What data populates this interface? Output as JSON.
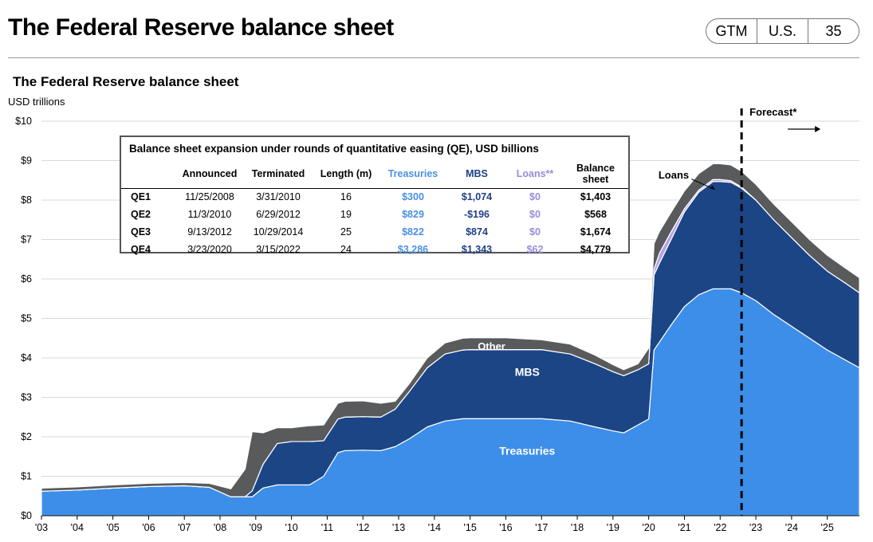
{
  "header": {
    "title": "The Federal Reserve balance sheet",
    "badge": [
      "GTM",
      "U.S.",
      "35"
    ]
  },
  "chart_data": {
    "type": "area",
    "title": "The Federal Reserve balance sheet",
    "ylabel": "USD trillions",
    "ylim": [
      0,
      10
    ],
    "yticks": [
      "$0",
      "$1",
      "$2",
      "$3",
      "$4",
      "$5",
      "$6",
      "$7",
      "$8",
      "$9",
      "$10"
    ],
    "xticks": [
      "'03",
      "'04",
      "'05",
      "'06",
      "'07",
      "'08",
      "'09",
      "'10",
      "'11",
      "'12",
      "'13",
      "'14",
      "'15",
      "'16",
      "'17",
      "'18",
      "'19",
      "'20",
      "'21",
      "'22",
      "'23",
      "'24",
      "'25"
    ],
    "x": [
      2003.0,
      2004.0,
      2005.0,
      2006.0,
      2007.0,
      2007.7,
      2008.3,
      2008.7,
      2008.9,
      2009.2,
      2009.6,
      2010.0,
      2010.5,
      2010.9,
      2011.3,
      2011.5,
      2012.0,
      2012.5,
      2012.9,
      2013.3,
      2013.8,
      2014.3,
      2014.8,
      2015.0,
      2016.0,
      2017.0,
      2017.8,
      2018.5,
      2019.0,
      2019.3,
      2019.7,
      2020.0,
      2020.15,
      2020.3,
      2020.6,
      2021.0,
      2021.4,
      2021.8,
      2022.0,
      2022.3,
      2022.6,
      2023.0,
      2023.5,
      2024.0,
      2024.5,
      2025.0,
      2025.5,
      2025.9
    ],
    "series": [
      {
        "name": "Treasuries",
        "values": [
          0.62,
          0.65,
          0.7,
          0.74,
          0.76,
          0.72,
          0.48,
          0.48,
          0.48,
          0.7,
          0.78,
          0.78,
          0.78,
          1.0,
          1.6,
          1.65,
          1.66,
          1.65,
          1.75,
          1.95,
          2.25,
          2.4,
          2.46,
          2.46,
          2.46,
          2.46,
          2.4,
          2.25,
          2.15,
          2.1,
          2.3,
          2.45,
          4.2,
          4.4,
          4.8,
          5.3,
          5.6,
          5.75,
          5.75,
          5.75,
          5.65,
          5.45,
          5.1,
          4.8,
          4.5,
          4.2,
          3.95,
          3.75
        ]
      },
      {
        "name": "MBS",
        "values": [
          0,
          0,
          0,
          0,
          0,
          0,
          0,
          0,
          0.15,
          0.6,
          1.05,
          1.1,
          1.1,
          0.9,
          0.85,
          0.85,
          0.85,
          0.85,
          0.95,
          1.2,
          1.5,
          1.7,
          1.74,
          1.75,
          1.75,
          1.75,
          1.7,
          1.6,
          1.5,
          1.45,
          1.4,
          1.4,
          1.9,
          2.0,
          2.15,
          2.4,
          2.6,
          2.72,
          2.72,
          2.7,
          2.65,
          2.55,
          2.4,
          2.25,
          2.1,
          2.0,
          1.95,
          1.9
        ]
      },
      {
        "name": "Loans",
        "values": [
          0,
          0,
          0,
          0,
          0,
          0,
          0,
          0,
          0,
          0,
          0,
          0,
          0,
          0,
          0,
          0,
          0,
          0,
          0,
          0,
          0,
          0,
          0,
          0,
          0,
          0,
          0,
          0,
          0,
          0,
          0,
          0,
          0.15,
          0.25,
          0.2,
          0.08,
          0.05,
          0.05,
          0.05,
          0.04,
          0.03,
          0,
          0,
          0,
          0,
          0,
          0,
          0
        ]
      },
      {
        "name": "Other",
        "values": [
          0.08,
          0.08,
          0.08,
          0.08,
          0.08,
          0.1,
          0.2,
          0.7,
          1.5,
          0.8,
          0.4,
          0.35,
          0.4,
          0.4,
          0.4,
          0.4,
          0.4,
          0.35,
          0.2,
          0.2,
          0.25,
          0.28,
          0.3,
          0.3,
          0.3,
          0.25,
          0.25,
          0.22,
          0.18,
          0.15,
          0.15,
          0.4,
          0.65,
          0.55,
          0.5,
          0.45,
          0.42,
          0.4,
          0.4,
          0.4,
          0.4,
          0.4,
          0.4,
          0.4,
          0.4,
          0.4,
          0.38,
          0.38
        ]
      }
    ],
    "area_labels": {
      "treasuries": "Treasuries",
      "mbs": "MBS",
      "other": "Other",
      "loans": "Loans"
    },
    "forecast": {
      "label": "Forecast*",
      "start_x": 2022.6
    },
    "colors": {
      "Treasuries": "#3d8ee9",
      "MBS": "#1c4585",
      "Loans": "#b4a3e8",
      "Other": "#585a5c"
    },
    "grid": true
  },
  "qe_table": {
    "title": "Balance sheet expansion under rounds of quantitative easing (QE), USD billions",
    "headers": [
      "",
      "Announced",
      "Terminated",
      "Length (m)",
      "Treasuries",
      "MBS",
      "Loans**",
      "Balance sheet"
    ],
    "rows": [
      [
        "QE1",
        "11/25/2008",
        "3/31/2010",
        "16",
        "$300",
        "$1,074",
        "$0",
        "$1,403"
      ],
      [
        "QE2",
        "11/3/2010",
        "6/29/2012",
        "19",
        "$829",
        "-$196",
        "$0",
        "$568"
      ],
      [
        "QE3",
        "9/13/2012",
        "10/29/2014",
        "25",
        "$822",
        "$874",
        "$0",
        "$1,674"
      ],
      [
        "QE4",
        "3/23/2020",
        "3/15/2022",
        "24",
        "$3,286",
        "$1,343",
        "$62",
        "$4,779"
      ]
    ]
  }
}
